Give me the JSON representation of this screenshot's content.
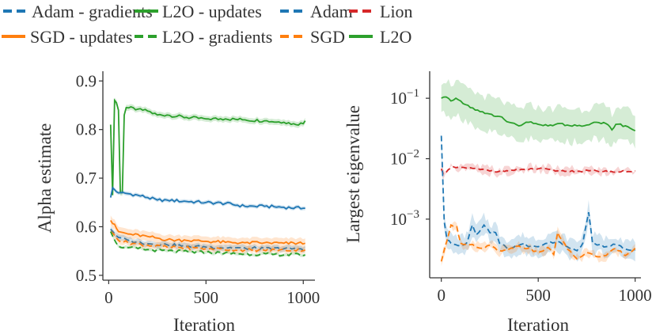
{
  "colors": {
    "blue": "#1f77b4",
    "orange": "#ff7f0e",
    "green": "#2ca02c",
    "red": "#d62728",
    "axis": "#333333"
  },
  "chart_data": [
    {
      "type": "line",
      "xlabel": "Iteration",
      "ylabel": "Alpha estimate",
      "xlim": [
        -30,
        1060
      ],
      "ylim": [
        0.49,
        0.92
      ],
      "xticks": [
        0,
        500,
        1000
      ],
      "xtick_labels": [
        "0",
        "500",
        "1000"
      ],
      "yticks": [
        0.5,
        0.6,
        0.7,
        0.8,
        0.9
      ],
      "ytick_labels": [
        "0.5",
        "0.6",
        "0.7",
        "0.8",
        "0.9"
      ],
      "grid": false,
      "legend_position": "top-left, above plot",
      "legend": [
        {
          "label": "Adam - gradients",
          "color": "blue",
          "dash": true
        },
        {
          "label": "L2O - updates",
          "color": "green",
          "dash": false
        },
        {
          "label": "SGD - updates",
          "color": "orange",
          "dash": false
        },
        {
          "label": "L2O - gradients",
          "color": "green",
          "dash": true
        }
      ],
      "series": [
        {
          "key": "l2o_updates",
          "color": "green",
          "dash": false,
          "band": 0.006,
          "points": [
            [
              10,
              0.81
            ],
            [
              20,
              0.665
            ],
            [
              30,
              0.86
            ],
            [
              40,
              0.855
            ],
            [
              50,
              0.84
            ],
            [
              60,
              0.67
            ],
            [
              70,
              0.67
            ],
            [
              80,
              0.83
            ],
            [
              90,
              0.845
            ],
            [
              150,
              0.842
            ],
            [
              200,
              0.838
            ],
            [
              250,
              0.83
            ],
            [
              300,
              0.83
            ],
            [
              400,
              0.825
            ],
            [
              500,
              0.822
            ],
            [
              600,
              0.822
            ],
            [
              700,
              0.82
            ],
            [
              800,
              0.818
            ],
            [
              900,
              0.815
            ],
            [
              950,
              0.812
            ],
            [
              1000,
              0.812
            ],
            [
              1010,
              0.818
            ]
          ]
        },
        {
          "key": "adam_updates",
          "color": "blue",
          "dash": false,
          "band": 0.004,
          "points": [
            [
              10,
              0.66
            ],
            [
              20,
              0.68
            ],
            [
              40,
              0.672
            ],
            [
              60,
              0.67
            ],
            [
              100,
              0.668
            ],
            [
              150,
              0.665
            ],
            [
              200,
              0.66
            ],
            [
              250,
              0.655
            ],
            [
              300,
              0.655
            ],
            [
              400,
              0.652
            ],
            [
              500,
              0.65
            ],
            [
              600,
              0.648
            ],
            [
              700,
              0.642
            ],
            [
              800,
              0.642
            ],
            [
              900,
              0.64
            ],
            [
              1000,
              0.638
            ],
            [
              1010,
              0.638
            ]
          ]
        },
        {
          "key": "sgd_updates",
          "color": "orange",
          "dash": false,
          "band": 0.01,
          "points": [
            [
              10,
              0.613
            ],
            [
              30,
              0.605
            ],
            [
              50,
              0.59
            ],
            [
              100,
              0.585
            ],
            [
              200,
              0.58
            ],
            [
              300,
              0.573
            ],
            [
              400,
              0.572
            ],
            [
              500,
              0.57
            ],
            [
              600,
              0.568
            ],
            [
              700,
              0.567
            ],
            [
              800,
              0.567
            ],
            [
              900,
              0.566
            ],
            [
              1010,
              0.566
            ]
          ]
        },
        {
          "key": "adam_gradients",
          "color": "blue",
          "dash": true,
          "band": 0.006,
          "points": [
            [
              10,
              0.595
            ],
            [
              50,
              0.578
            ],
            [
              100,
              0.572
            ],
            [
              200,
              0.565
            ],
            [
              300,
              0.563
            ],
            [
              400,
              0.56
            ],
            [
              500,
              0.558
            ],
            [
              600,
              0.557
            ],
            [
              700,
              0.556
            ],
            [
              800,
              0.555
            ],
            [
              1010,
              0.555
            ]
          ]
        },
        {
          "key": "sgd_gradients",
          "color": "orange",
          "dash": true,
          "band": 0.006,
          "points": [
            [
              10,
              0.59
            ],
            [
              50,
              0.572
            ],
            [
              100,
              0.567
            ],
            [
              200,
              0.562
            ],
            [
              300,
              0.558
            ],
            [
              500,
              0.555
            ],
            [
              700,
              0.552
            ],
            [
              1010,
              0.552
            ]
          ]
        },
        {
          "key": "l2o_gradients",
          "color": "green",
          "dash": true,
          "band": 0.003,
          "points": [
            [
              10,
              0.59
            ],
            [
              50,
              0.56
            ],
            [
              100,
              0.557
            ],
            [
              200,
              0.553
            ],
            [
              300,
              0.55
            ],
            [
              500,
              0.547
            ],
            [
              700,
              0.544
            ],
            [
              1010,
              0.542
            ]
          ]
        }
      ]
    },
    {
      "type": "line",
      "yscale": "log",
      "xlabel": "Iteration",
      "ylabel": "Largest eigenvalue",
      "xlim": [
        -60,
        1030
      ],
      "ylim": [
        0.000107,
        0.28
      ],
      "xticks": [
        0,
        500,
        1000
      ],
      "xtick_labels": [
        "0",
        "500",
        "1000"
      ],
      "yticks": [
        0.1,
        0.01,
        0.001
      ],
      "ytick_labels": [
        {
          "base": "10",
          "exp": "−1"
        },
        {
          "base": "10",
          "exp": "−2"
        },
        {
          "base": "10",
          "exp": "−3"
        }
      ],
      "grid": false,
      "legend_position": "top-right, above plot",
      "legend": [
        {
          "label": "Adam",
          "color": "blue",
          "dash": true
        },
        {
          "label": "Lion",
          "color": "red",
          "dash": true
        },
        {
          "label": "SGD",
          "color": "orange",
          "dash": true
        },
        {
          "label": "L2O",
          "color": "green",
          "dash": false
        }
      ],
      "series": [
        {
          "key": "l2o",
          "color": "green",
          "dash": false,
          "band": 1.9,
          "points": [
            [
              0,
              0.1
            ],
            [
              25,
              0.105
            ],
            [
              50,
              0.09
            ],
            [
              75,
              0.1
            ],
            [
              100,
              0.09
            ],
            [
              150,
              0.07
            ],
            [
              200,
              0.06
            ],
            [
              250,
              0.055
            ],
            [
              280,
              0.05
            ],
            [
              300,
              0.05
            ],
            [
              350,
              0.04
            ],
            [
              400,
              0.035
            ],
            [
              450,
              0.04
            ],
            [
              500,
              0.037
            ],
            [
              550,
              0.035
            ],
            [
              600,
              0.038
            ],
            [
              650,
              0.036
            ],
            [
              700,
              0.035
            ],
            [
              750,
              0.036
            ],
            [
              800,
              0.04
            ],
            [
              850,
              0.038
            ],
            [
              880,
              0.03
            ],
            [
              900,
              0.037
            ],
            [
              950,
              0.035
            ],
            [
              1000,
              0.029
            ]
          ]
        },
        {
          "key": "lion",
          "color": "red",
          "dash": true,
          "band": 1.1,
          "points": [
            [
              0,
              0.0068
            ],
            [
              10,
              0.0056
            ],
            [
              50,
              0.007
            ],
            [
              100,
              0.0072
            ],
            [
              200,
              0.0066
            ],
            [
              300,
              0.0062
            ],
            [
              400,
              0.0065
            ],
            [
              500,
              0.0068
            ],
            [
              600,
              0.0063
            ],
            [
              700,
              0.0062
            ],
            [
              800,
              0.0063
            ],
            [
              900,
              0.006
            ],
            [
              1000,
              0.0063
            ]
          ]
        },
        {
          "key": "adam",
          "color": "blue",
          "dash": true,
          "band": 1.4,
          "points": [
            [
              0,
              0.024
            ],
            [
              15,
              0.0009
            ],
            [
              30,
              0.00045
            ],
            [
              50,
              0.0004
            ],
            [
              100,
              0.00037
            ],
            [
              130,
              0.0004
            ],
            [
              160,
              0.0008
            ],
            [
              180,
              0.00055
            ],
            [
              220,
              0.0008
            ],
            [
              250,
              0.0006
            ],
            [
              280,
              0.0006
            ],
            [
              300,
              0.0004
            ],
            [
              350,
              0.00033
            ],
            [
              400,
              0.00037
            ],
            [
              430,
              0.0004
            ],
            [
              450,
              0.00035
            ],
            [
              500,
              0.00035
            ],
            [
              550,
              0.0004
            ],
            [
              600,
              0.00043
            ],
            [
              650,
              0.00035
            ],
            [
              700,
              0.0003
            ],
            [
              730,
              0.0004
            ],
            [
              760,
              0.0013
            ],
            [
              780,
              0.0004
            ],
            [
              850,
              0.00035
            ],
            [
              900,
              0.00038
            ],
            [
              950,
              0.00032
            ],
            [
              1000,
              0.00031
            ]
          ]
        },
        {
          "key": "sgd",
          "color": "orange",
          "dash": true,
          "band": 1.12,
          "points": [
            [
              0,
              0.0002
            ],
            [
              30,
              0.00045
            ],
            [
              50,
              0.0008
            ],
            [
              80,
              0.00075
            ],
            [
              100,
              0.0004
            ],
            [
              150,
              0.00038
            ],
            [
              200,
              0.00033
            ],
            [
              250,
              0.00037
            ],
            [
              300,
              0.0003
            ],
            [
              350,
              0.00032
            ],
            [
              400,
              0.00036
            ],
            [
              450,
              0.00033
            ],
            [
              500,
              0.00028
            ],
            [
              550,
              0.00034
            ],
            [
              580,
              0.00026
            ],
            [
              600,
              0.0006
            ],
            [
              650,
              0.00032
            ],
            [
              700,
              0.00022
            ],
            [
              750,
              0.00028
            ],
            [
              800,
              0.00024
            ],
            [
              850,
              0.00025
            ],
            [
              900,
              0.00033
            ],
            [
              950,
              0.00025
            ],
            [
              1000,
              0.00033
            ]
          ]
        }
      ]
    }
  ]
}
